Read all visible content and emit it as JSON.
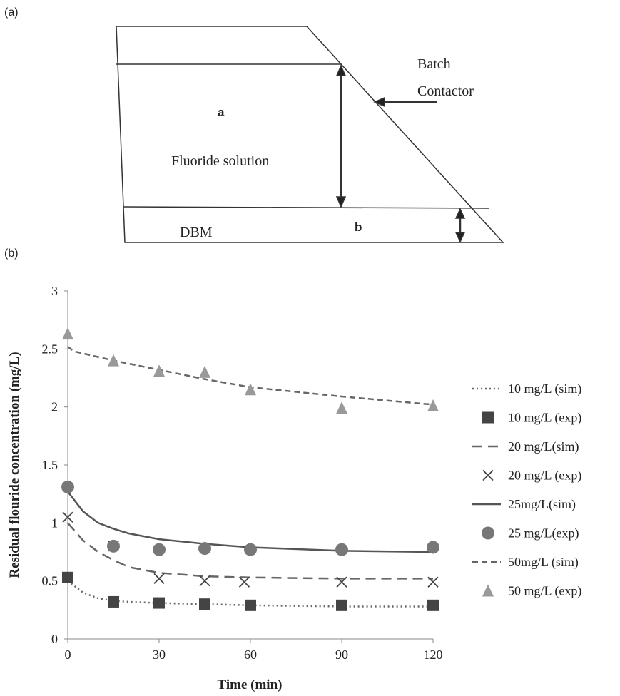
{
  "figure_a": {
    "panel": "(a)",
    "labels": {
      "batch": "Batch",
      "contactor": "Contactor",
      "a": "a",
      "solution": "Fluoride solution",
      "dbm": "DBM",
      "b": "b"
    }
  },
  "chart_data": {
    "type": "line",
    "panel": "(b)",
    "x_label": "Time (min)",
    "y_label": "Residual flouride concentration (mg/L)",
    "xlim": [
      0,
      120
    ],
    "xticks": [
      0,
      30,
      60,
      90,
      120
    ],
    "ylim": [
      0,
      3
    ],
    "yticks": [
      0,
      0.5,
      1,
      1.5,
      2,
      2.5,
      3
    ],
    "grid": false,
    "legend": "right",
    "series": [
      {
        "name": "10 mg/L (sim)",
        "color": "#666666",
        "line": "dotted",
        "x": [
          0,
          5,
          10,
          15,
          20,
          30,
          45,
          60,
          90,
          120
        ],
        "values": [
          0.5,
          0.4,
          0.35,
          0.33,
          0.32,
          0.31,
          0.3,
          0.29,
          0.28,
          0.28
        ]
      },
      {
        "name": "10 mg/L (exp)",
        "color": "#444444",
        "marker": "square",
        "x": [
          0,
          15,
          30,
          45,
          60,
          90,
          120
        ],
        "values": [
          0.53,
          0.32,
          0.31,
          0.3,
          0.29,
          0.29,
          0.29
        ]
      },
      {
        "name": "20 mg/L(sim)",
        "color": "#666666",
        "line": "dashed",
        "x": [
          0,
          5,
          10,
          15,
          20,
          30,
          45,
          60,
          90,
          120
        ],
        "values": [
          1.0,
          0.85,
          0.75,
          0.68,
          0.62,
          0.57,
          0.54,
          0.53,
          0.52,
          0.52
        ]
      },
      {
        "name": "20 mg/L (exp)",
        "color": "#444444",
        "marker": "cross",
        "x": [
          0,
          15,
          30,
          45,
          58,
          90,
          120
        ],
        "values": [
          1.05,
          0.8,
          0.52,
          0.5,
          0.49,
          0.49,
          0.49
        ]
      },
      {
        "name": "25mg/L(sim)",
        "color": "#555555",
        "line": "solid",
        "x": [
          0,
          5,
          10,
          15,
          20,
          30,
          45,
          60,
          90,
          120
        ],
        "values": [
          1.27,
          1.1,
          1.0,
          0.95,
          0.91,
          0.86,
          0.82,
          0.79,
          0.76,
          0.75
        ]
      },
      {
        "name": "25 mg/L(exp)",
        "color": "#777777",
        "marker": "circle",
        "x": [
          0,
          15,
          30,
          45,
          60,
          90,
          120
        ],
        "values": [
          1.31,
          0.8,
          0.77,
          0.78,
          0.77,
          0.77,
          0.79
        ]
      },
      {
        "name": "50mg/L (sim)",
        "color": "#666666",
        "line": "short-dashed",
        "x": [
          0,
          2,
          15,
          30,
          45,
          60,
          90,
          120
        ],
        "values": [
          2.52,
          2.48,
          2.4,
          2.32,
          2.24,
          2.17,
          2.09,
          2.02
        ]
      },
      {
        "name": "50 mg/L (exp)",
        "color": "#999999",
        "marker": "triangle",
        "x": [
          0,
          15,
          30,
          45,
          60,
          90,
          120
        ],
        "values": [
          2.63,
          2.4,
          2.31,
          2.3,
          2.15,
          1.99,
          2.01
        ]
      }
    ]
  }
}
